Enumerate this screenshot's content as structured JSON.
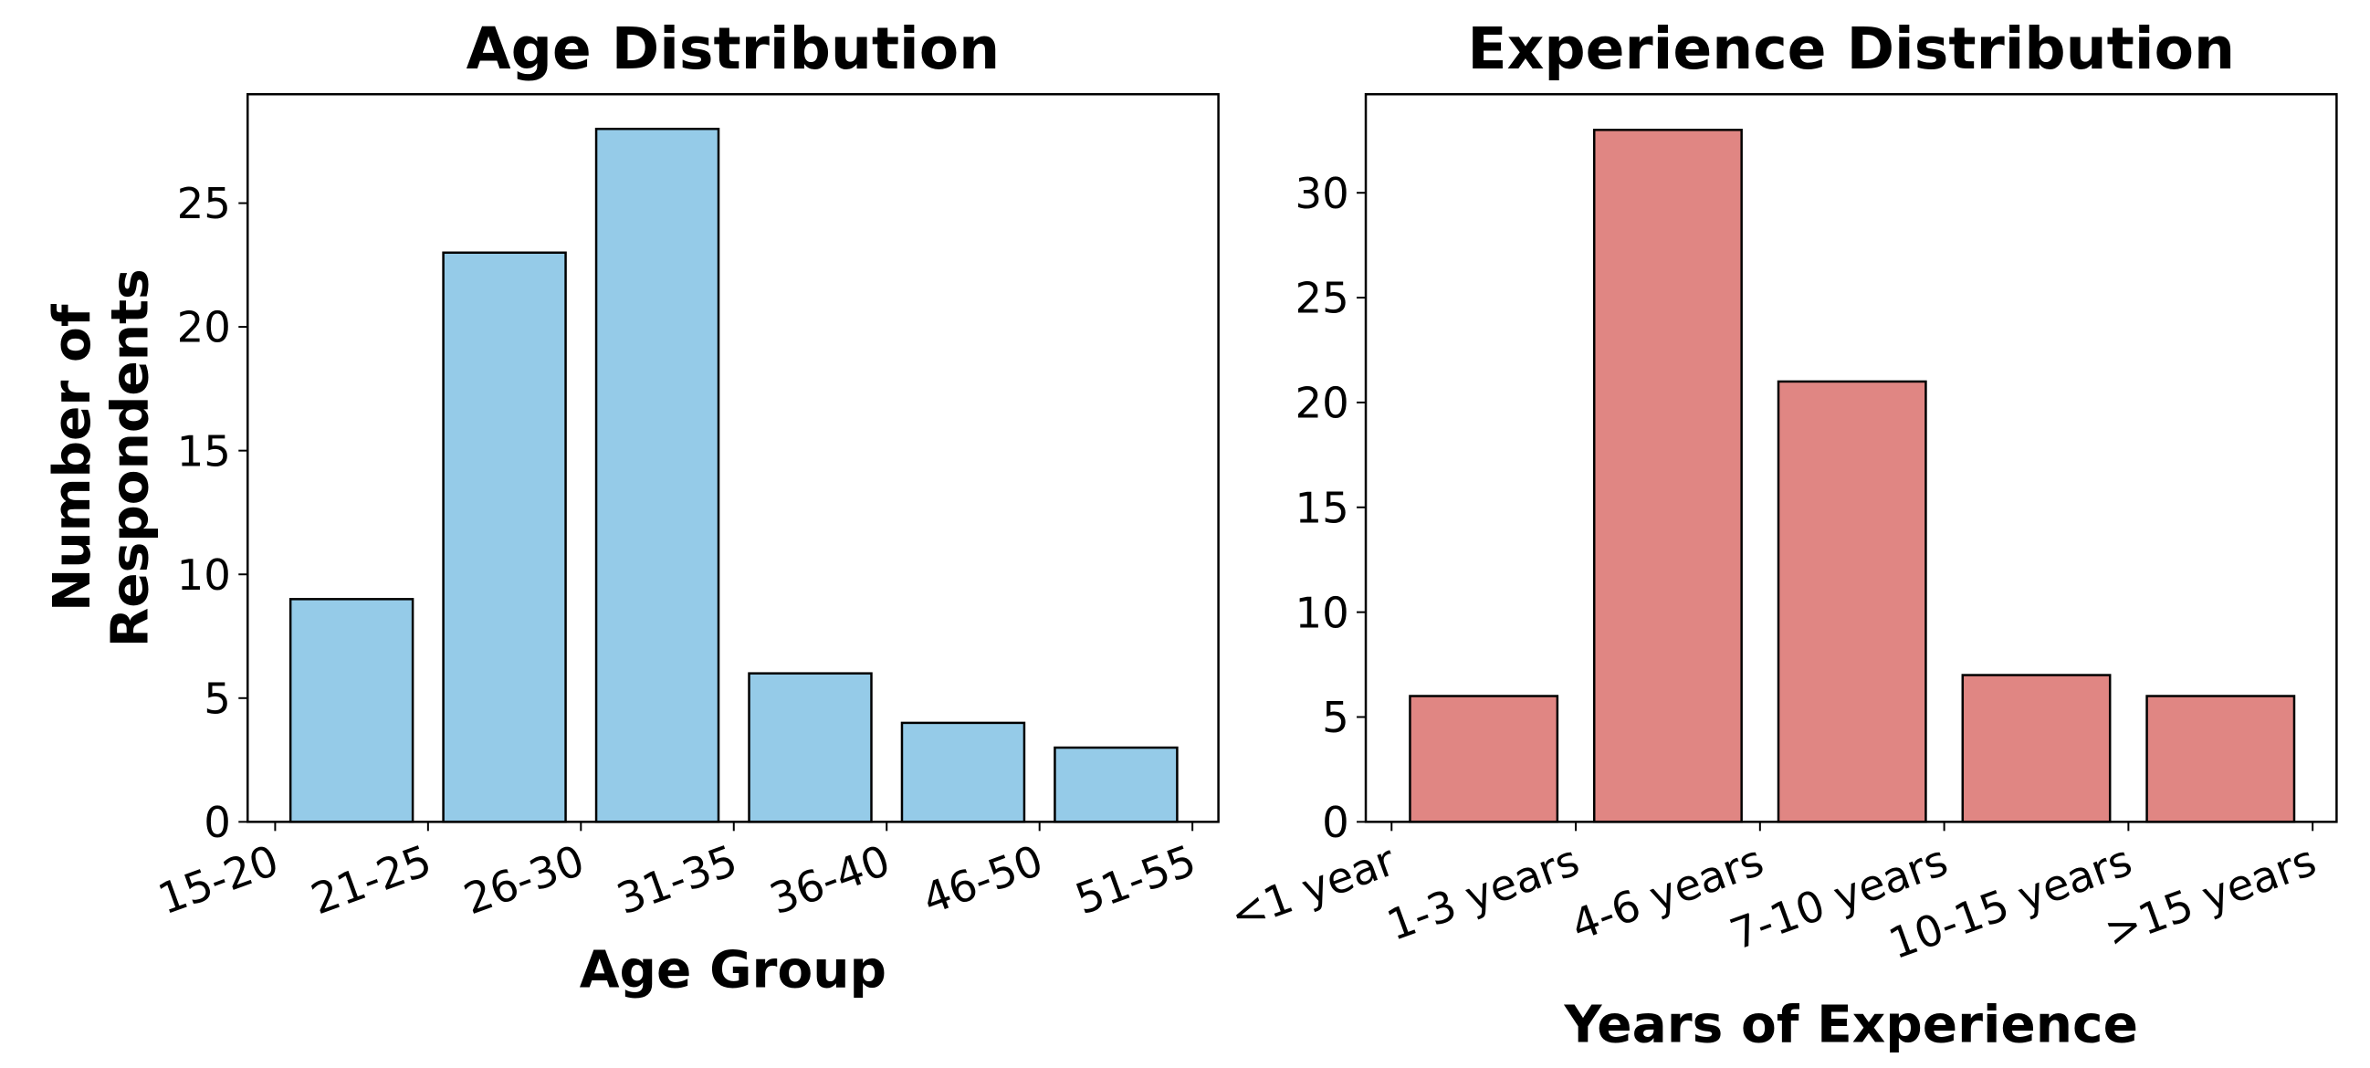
{
  "chart_data": [
    {
      "type": "histogram",
      "title": "Age Distribution",
      "xlabel": "Age Group",
      "ylabel": "Number of\nRespondents",
      "bins": [
        0,
        1,
        2,
        3,
        4,
        5,
        6
      ],
      "values": [
        9,
        23,
        28,
        6,
        4,
        3
      ],
      "color": "#95cbe8",
      "edgecolor": "#000000",
      "xlim": [
        -0.18,
        6.17
      ],
      "xticks": [
        {
          "value": 0,
          "label": "15-20"
        },
        {
          "value": 1,
          "label": "21-25"
        },
        {
          "value": 2,
          "label": "26-30"
        },
        {
          "value": 3,
          "label": "31-35"
        },
        {
          "value": 4,
          "label": "36-40"
        },
        {
          "value": 5,
          "label": "46-50"
        },
        {
          "value": 6,
          "label": "51-55"
        }
      ],
      "ylim": [
        0,
        29.4
      ],
      "yticks": [
        0,
        5,
        10,
        15,
        20,
        25
      ]
    },
    {
      "type": "histogram",
      "title": "Experience Distribution",
      "xlabel": "Years of Experience",
      "bins": [
        0,
        1,
        2,
        3,
        4,
        5
      ],
      "values": [
        6,
        33,
        21,
        7,
        6
      ],
      "color": "#e08683",
      "edgecolor": "#000000",
      "xlim": [
        -0.14,
        5.13
      ],
      "xticks": [
        {
          "value": 0,
          "label": "<1 year"
        },
        {
          "value": 1,
          "label": "1-3 years"
        },
        {
          "value": 2,
          "label": "4-6 years"
        },
        {
          "value": 3,
          "label": "7-10 years"
        },
        {
          "value": 4,
          "label": "10-15 years"
        },
        {
          "value": 5,
          "label": ">15 years"
        }
      ],
      "ylim": [
        0,
        34.7
      ],
      "yticks": [
        0,
        5,
        10,
        15,
        20,
        25,
        30
      ]
    }
  ]
}
